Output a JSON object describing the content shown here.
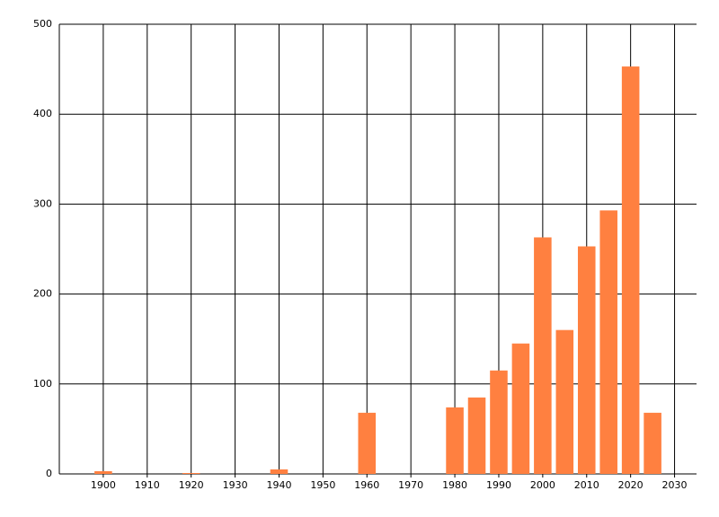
{
  "chart_data": {
    "type": "bar",
    "x": [
      1900,
      1920,
      1940,
      1960,
      1980,
      1985,
      1990,
      1995,
      2000,
      2005,
      2010,
      2015,
      2020,
      2025
    ],
    "values": [
      3,
      1,
      5,
      68,
      74,
      85,
      115,
      145,
      263,
      160,
      253,
      293,
      453,
      68
    ],
    "color": "#ff8040",
    "xlim": [
      1890,
      2035
    ],
    "xticks": [
      1900,
      1910,
      1920,
      1930,
      1940,
      1950,
      1960,
      1970,
      1980,
      1990,
      2000,
      2010,
      2020,
      2030
    ],
    "ylim": [
      0,
      500
    ],
    "yticks": [
      0,
      100,
      200,
      300,
      400,
      500
    ],
    "grid": true
  }
}
